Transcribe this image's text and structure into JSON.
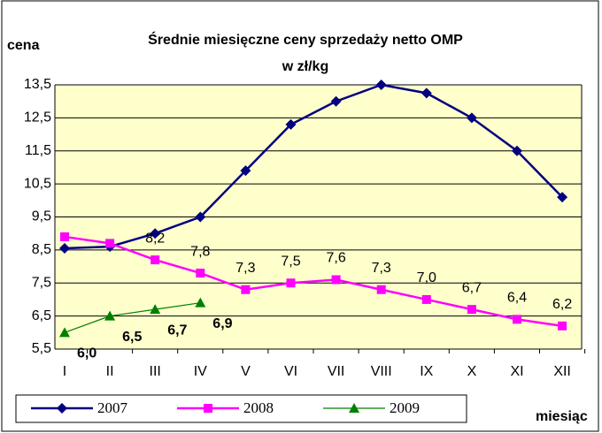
{
  "chart_data": {
    "type": "line",
    "title": "Średnie miesięczne ceny sprzedaży netto OMP",
    "subtitle": "w zł/kg",
    "y_label": "cena",
    "x_label": "miesiąc",
    "categories": [
      "I",
      "II",
      "III",
      "IV",
      "V",
      "VI",
      "VII",
      "VIII",
      "IX",
      "X",
      "XI",
      "XII"
    ],
    "series": [
      {
        "name": "2007",
        "color": "#000080",
        "marker": "diamond",
        "values": [
          8.55,
          8.6,
          9.0,
          9.5,
          10.9,
          12.3,
          13.0,
          13.5,
          13.25,
          12.5,
          11.5,
          10.1
        ]
      },
      {
        "name": "2008",
        "color": "#ff00ff",
        "marker": "square",
        "values": [
          8.9,
          8.7,
          8.2,
          7.8,
          7.3,
          7.5,
          7.6,
          7.3,
          7.0,
          6.7,
          6.4,
          6.2
        ],
        "value_labels": [
          null,
          null,
          "8,2",
          "7,8",
          "7,3",
          "7,5",
          "7,6",
          "7,3",
          "7,0",
          "6,7",
          "6,4",
          "6,2"
        ]
      },
      {
        "name": "2009",
        "color": "#008000",
        "marker": "triangle",
        "values": [
          6.0,
          6.5,
          6.7,
          6.9,
          null,
          null,
          null,
          null,
          null,
          null,
          null,
          null
        ],
        "value_labels": [
          "6,0",
          "6,5",
          "6,7",
          "6,9",
          null,
          null,
          null,
          null,
          null,
          null,
          null,
          null
        ]
      }
    ],
    "ylim": [
      5.5,
      13.5
    ],
    "yticks": [
      {
        "value": 5.5,
        "label": "5,5"
      },
      {
        "value": 6.5,
        "label": "6,5"
      },
      {
        "value": 7.5,
        "label": "7,5"
      },
      {
        "value": 8.5,
        "label": "8,5"
      },
      {
        "value": 9.5,
        "label": "9,5"
      },
      {
        "value": 10.5,
        "label": "10,5"
      },
      {
        "value": 11.5,
        "label": "11,5"
      },
      {
        "value": 12.5,
        "label": "12,5"
      },
      {
        "value": 13.5,
        "label": "13,5"
      }
    ],
    "grid": true,
    "legend": "bottom"
  }
}
